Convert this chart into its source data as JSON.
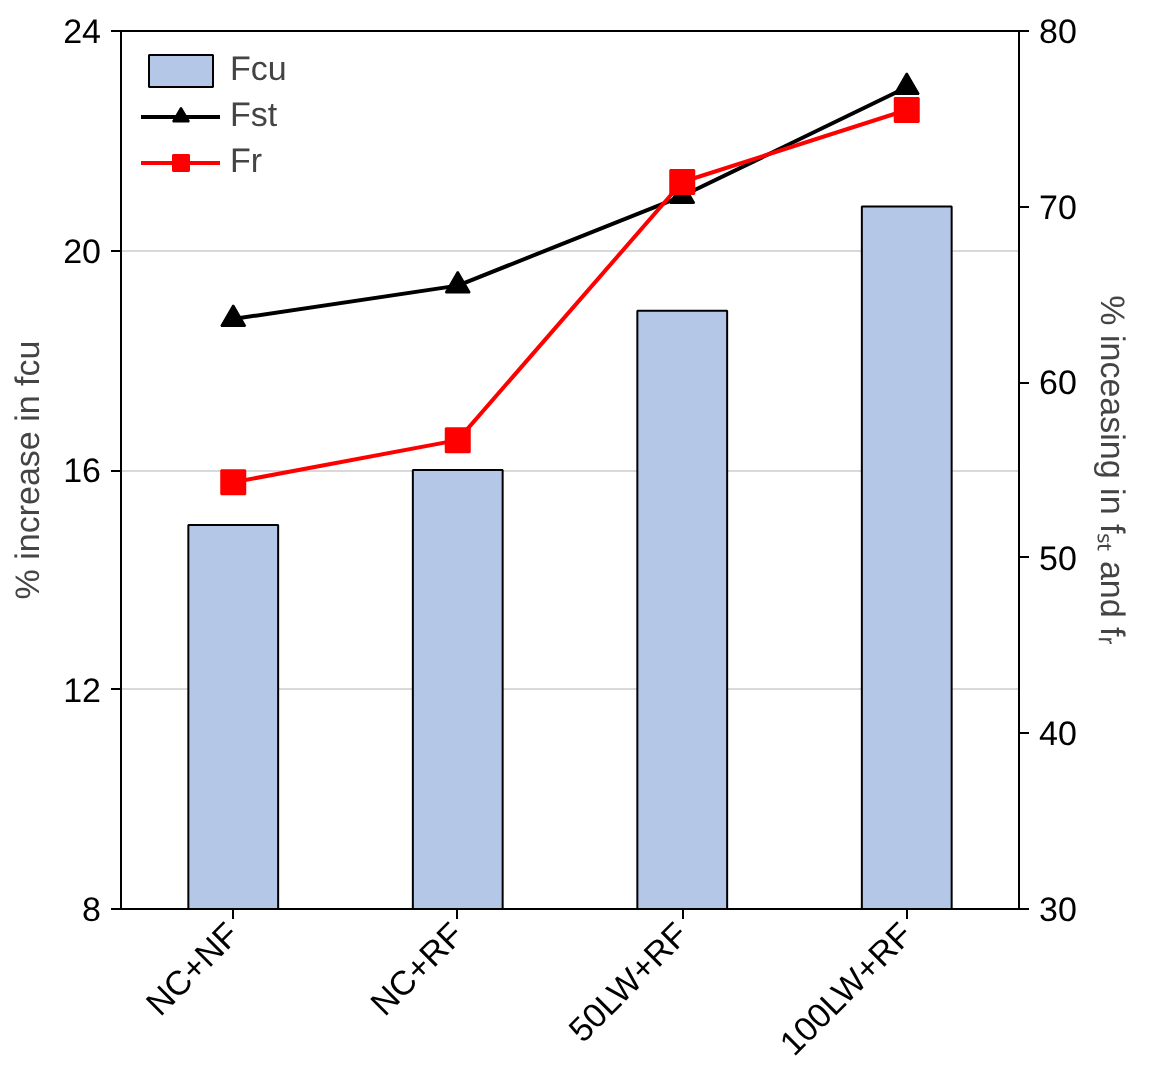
{
  "chart_data": {
    "type": "bar",
    "categories": [
      "NC+NF",
      "NC+RF",
      "50LW+RF",
      "100LW+RF"
    ],
    "ylabel": "% increase in fcu",
    "y2label": "% inceasing in fₛₜ and fᵣ",
    "ylim": [
      8,
      24
    ],
    "yticks": [
      8,
      12,
      16,
      20,
      24
    ],
    "y2lim": [
      30,
      80
    ],
    "y2ticks": [
      30,
      40,
      50,
      60,
      70,
      80
    ],
    "grid": "y",
    "legend": "top left",
    "series": [
      {
        "name": "Fcu",
        "color": "#b4c7e7",
        "values": [
          15.0,
          16.0,
          18.9,
          20.8
        ]
      },
      {
        "name": "Fst",
        "type": "line",
        "axis": "y2",
        "color": "#000000",
        "marker": "triangle",
        "values": [
          63.6,
          65.5,
          70.6,
          76.8
        ]
      },
      {
        "name": "Fr",
        "type": "line",
        "axis": "y2",
        "color": "#ff0000",
        "marker": "square",
        "values": [
          54.3,
          56.7,
          71.4,
          75.5
        ]
      }
    ]
  }
}
